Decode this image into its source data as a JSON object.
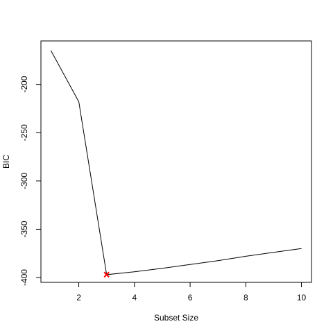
{
  "chart_data": {
    "type": "line",
    "title": "",
    "xlabel": "Subset Size",
    "ylabel": "BIC",
    "xlim": [
      0.64,
      10.36
    ],
    "ylim": [
      -405,
      -155
    ],
    "xticks": [
      2,
      4,
      6,
      8,
      10
    ],
    "yticks": [
      -400,
      -350,
      -300,
      -250,
      -200
    ],
    "x": [
      1,
      2,
      3,
      4,
      5,
      6,
      7,
      8,
      9,
      10
    ],
    "y": [
      -165,
      -218,
      -397,
      -394,
      -390.5,
      -386.5,
      -382.5,
      -378,
      -374,
      -370
    ],
    "line_color": "#000000",
    "highlight": {
      "x": 3,
      "y": -397,
      "marker": "x",
      "color": "#ff0000"
    },
    "grid": false,
    "legend": "none"
  }
}
